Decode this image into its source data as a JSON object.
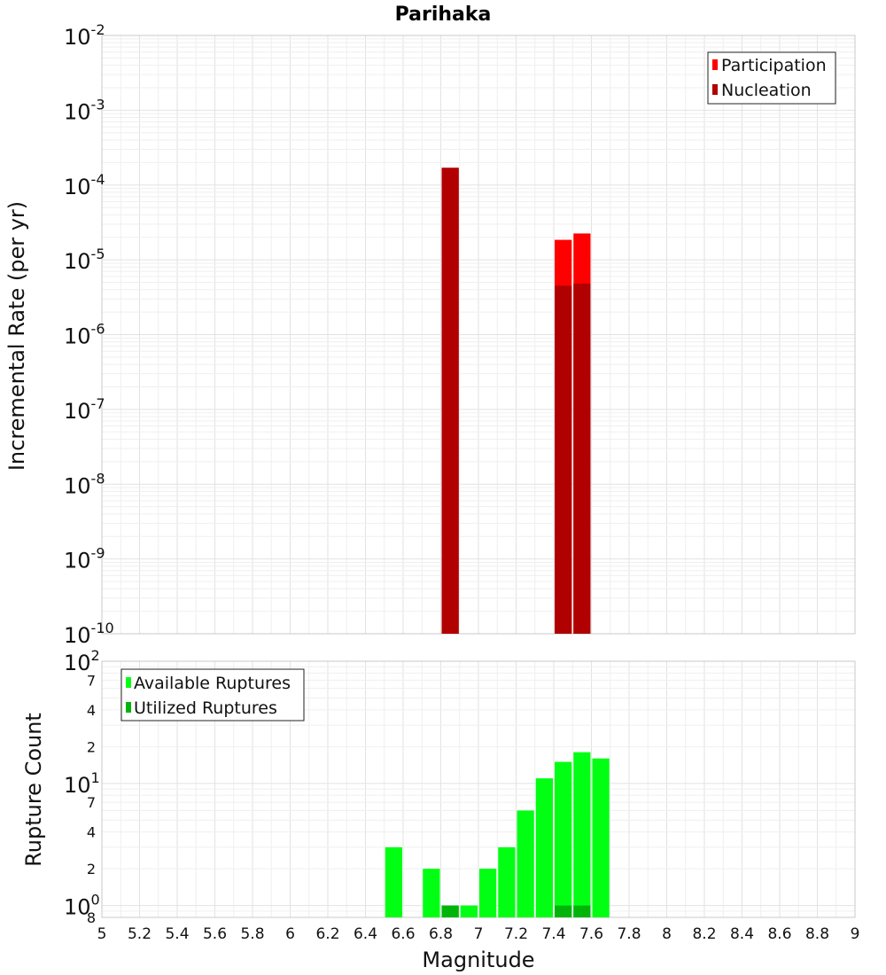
{
  "title": "Parihaka",
  "x_axis": {
    "label": "Magnitude",
    "ticks": [
      "5",
      "5.2",
      "5.4",
      "5.6",
      "5.8",
      "6",
      "6.2",
      "6.4",
      "6.6",
      "6.8",
      "7",
      "7.2",
      "7.4",
      "7.6",
      "7.8",
      "8",
      "8.2",
      "8.4",
      "8.6",
      "8.8",
      "9"
    ]
  },
  "top_axis": {
    "ylabel": "Incremental Rate (per yr)",
    "ticks": [
      {
        "base": "10",
        "exp": "-2"
      },
      {
        "base": "10",
        "exp": "-3"
      },
      {
        "base": "10",
        "exp": "-4"
      },
      {
        "base": "10",
        "exp": "-5"
      },
      {
        "base": "10",
        "exp": "-6"
      },
      {
        "base": "10",
        "exp": "-7"
      },
      {
        "base": "10",
        "exp": "-8"
      },
      {
        "base": "10",
        "exp": "-9"
      },
      {
        "base": "10",
        "exp": "-10"
      }
    ]
  },
  "bottom_axis": {
    "ylabel": "Rupture Count",
    "major_ticks": [
      {
        "base": "10",
        "exp": "2"
      },
      {
        "base": "10",
        "exp": "1"
      },
      {
        "base": "10",
        "exp": "0"
      }
    ],
    "minor_ticks": [
      "7",
      "4",
      "2",
      "7",
      "4",
      "2",
      "8"
    ]
  },
  "legend_top": [
    "Participation",
    "Nucleation"
  ],
  "legend_bottom": [
    "Available Ruptures",
    "Utilized Ruptures"
  ],
  "colors": {
    "participation": "#ff0000",
    "nucleation": "#b00000",
    "available": "#00ff12",
    "utilized": "#00b40a"
  },
  "chart_data": [
    {
      "type": "bar",
      "title": "Parihaka",
      "xlabel": "Magnitude",
      "ylabel": "Incremental Rate (per yr)",
      "yscale": "log",
      "xlim": [
        5,
        9
      ],
      "ylim": [
        1e-10,
        0.01
      ],
      "grid": true,
      "legend": "top-right",
      "bin_width": 0.1,
      "series": [
        {
          "name": "Participation",
          "x": [
            6.85,
            7.45,
            7.55
          ],
          "values": [
            0.00017,
            1.85e-05,
            2.25e-05
          ]
        },
        {
          "name": "Nucleation",
          "x": [
            6.85,
            7.45,
            7.55
          ],
          "values": [
            0.00017,
            4.5e-06,
            4.8e-06
          ]
        }
      ]
    },
    {
      "type": "bar",
      "xlabel": "Magnitude",
      "ylabel": "Rupture Count",
      "yscale": "log",
      "xlim": [
        5,
        9
      ],
      "ylim": [
        0.8,
        100
      ],
      "grid": true,
      "legend": "top-left",
      "bin_width": 0.1,
      "series": [
        {
          "name": "Available Ruptures",
          "x": [
            6.55,
            6.75,
            6.85,
            6.95,
            7.05,
            7.15,
            7.25,
            7.35,
            7.45,
            7.55,
            7.65
          ],
          "values": [
            3,
            2,
            1,
            1,
            2,
            3,
            6,
            11,
            15,
            18,
            16
          ]
        },
        {
          "name": "Utilized Ruptures",
          "x": [
            6.85,
            7.45,
            7.55
          ],
          "values": [
            1,
            1,
            1
          ]
        }
      ]
    }
  ]
}
